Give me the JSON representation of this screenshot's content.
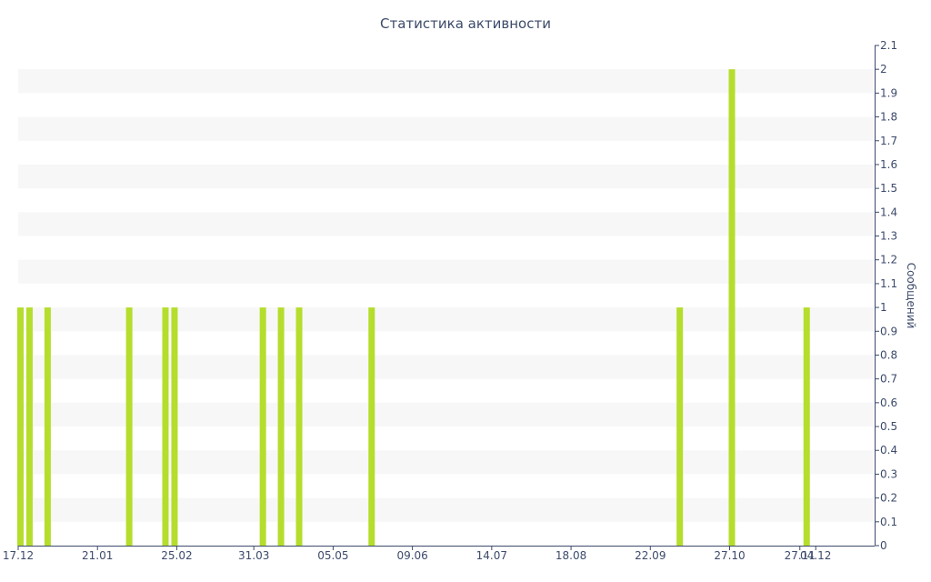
{
  "chart_data": {
    "type": "bar",
    "title": "Статистика активности",
    "xlabel": "",
    "ylabel": "Сообщений",
    "x_axis": "date",
    "x_range": [
      "2022-12-17",
      "2023-12-30"
    ],
    "x_tick_labels": [
      "17.12",
      "21.01",
      "25.02",
      "31.03",
      "05.05",
      "09.06",
      "14.07",
      "18.08",
      "22.09",
      "27.10",
      "27.11",
      "04.12"
    ],
    "x_tick_dates": [
      "2022-12-17",
      "2023-01-21",
      "2023-02-25",
      "2023-03-31",
      "2023-05-05",
      "2023-06-09",
      "2023-07-14",
      "2023-08-18",
      "2023-09-22",
      "2023-10-27",
      "2023-11-27",
      "2023-12-04"
    ],
    "ylim": [
      0,
      2.1
    ],
    "y_ticks": [
      "0",
      "0.1",
      "0.2",
      "0.3",
      "0.4",
      "0.5",
      "0.6",
      "0.7",
      "0.8",
      "0.9",
      "1",
      "1.1",
      "1.2",
      "1.3",
      "1.4",
      "1.5",
      "1.6",
      "1.7",
      "1.8",
      "1.9",
      "2",
      "2.1"
    ],
    "y_axis_position": "right",
    "grid": "horizontal bands",
    "bar_color": "#b5dd2c",
    "points": [
      {
        "date": "2022-12-18",
        "value": 1
      },
      {
        "date": "2022-12-22",
        "value": 1
      },
      {
        "date": "2022-12-30",
        "value": 1
      },
      {
        "date": "2023-02-04",
        "value": 1
      },
      {
        "date": "2023-02-20",
        "value": 1
      },
      {
        "date": "2023-02-24",
        "value": 1
      },
      {
        "date": "2023-04-04",
        "value": 1
      },
      {
        "date": "2023-04-12",
        "value": 1
      },
      {
        "date": "2023-04-20",
        "value": 1
      },
      {
        "date": "2023-05-22",
        "value": 1
      },
      {
        "date": "2023-10-05",
        "value": 1
      },
      {
        "date": "2023-10-28",
        "value": 2
      },
      {
        "date": "2023-11-30",
        "value": 1
      }
    ]
  }
}
